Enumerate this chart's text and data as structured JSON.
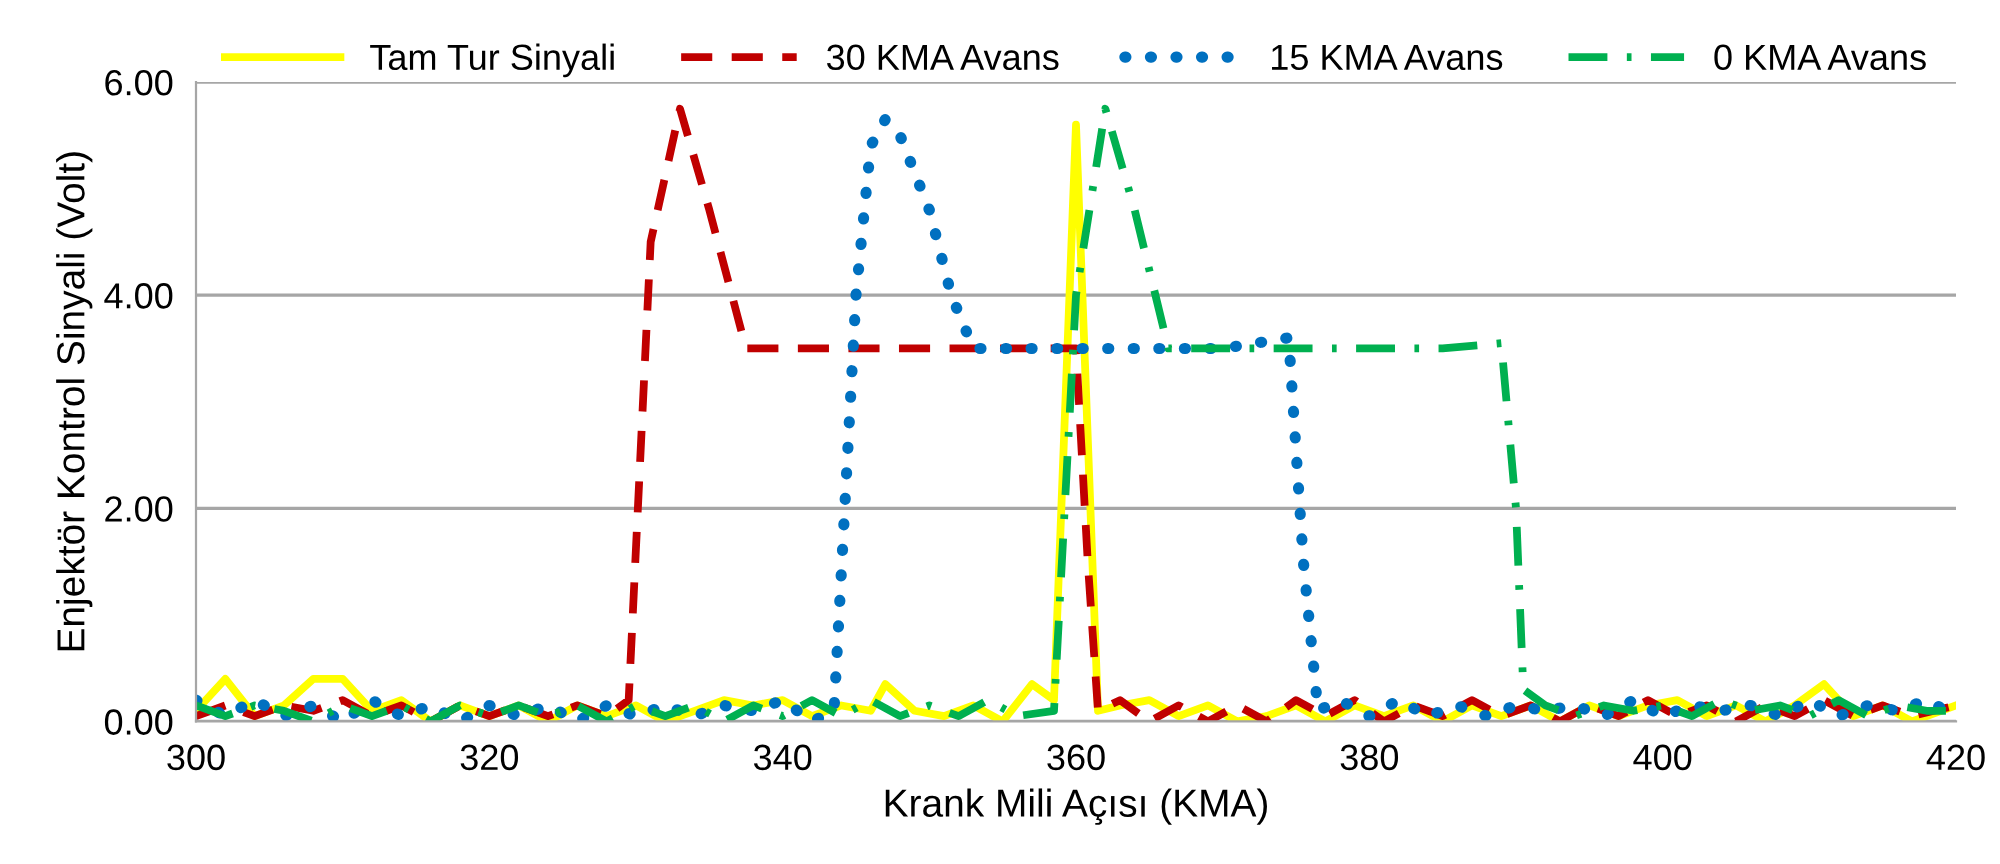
{
  "chart_data": {
    "type": "line",
    "xlabel": "Krank Mili Açısı (KMA)",
    "ylabel": "Enjektör Kontrol Sinyali (Volt)",
    "xlim": [
      300,
      420
    ],
    "xticks": [
      300,
      320,
      340,
      360,
      380,
      400,
      420
    ],
    "ylim": [
      0,
      6
    ],
    "yticks": [
      {
        "value": 0,
        "label": "0.00"
      },
      {
        "value": 2,
        "label": "2.00"
      },
      {
        "value": 4,
        "label": "4.00"
      },
      {
        "value": 6,
        "label": "6.00"
      }
    ],
    "grid": "y",
    "legend": "top",
    "marker": "none",
    "series": [
      {
        "name": "Tam Tur Sinyali",
        "color": "#ffff00",
        "line_style": "solid",
        "x": [
          300,
          302,
          304,
          306,
          308,
          310,
          312,
          314,
          316,
          318,
          320,
          322,
          324,
          326,
          328,
          330,
          332,
          334,
          336,
          338,
          340,
          342,
          344,
          346,
          347,
          349,
          351,
          353,
          355,
          357,
          358.5,
          360,
          361.5,
          363,
          365,
          367,
          369,
          371,
          373,
          375,
          377,
          379,
          381,
          383,
          385,
          387,
          389,
          391,
          393,
          395,
          397,
          399,
          401,
          403,
          405,
          407,
          409,
          411,
          413,
          415,
          417,
          420
        ],
        "values": [
          0.1,
          0.4,
          0.05,
          0.15,
          0.4,
          0.4,
          0.1,
          0.2,
          0.0,
          0.15,
          0.05,
          0.15,
          0.0,
          0.15,
          0.05,
          0.15,
          0.0,
          0.1,
          0.2,
          0.15,
          0.2,
          0.05,
          0.15,
          0.1,
          0.35,
          0.1,
          0.05,
          0.15,
          0.0,
          0.35,
          0.2,
          5.6,
          0.1,
          0.15,
          0.2,
          0.05,
          0.15,
          0.0,
          0.05,
          0.15,
          0.0,
          0.15,
          0.05,
          0.15,
          0.0,
          0.15,
          0.05,
          0.15,
          0.0,
          0.15,
          0.05,
          0.15,
          0.2,
          0.05,
          0.15,
          0.0,
          0.15,
          0.35,
          0.05,
          0.15,
          0.0,
          0.15
        ]
      },
      {
        "name": "30 KMA Avans",
        "color": "#c00000",
        "line_style": "dashed",
        "x": [
          300,
          302,
          304,
          306,
          308,
          310,
          312,
          314,
          316,
          318,
          320,
          322,
          324,
          326,
          328,
          329.5,
          331,
          333,
          335,
          337.5,
          340,
          345,
          350,
          355,
          360,
          360.8,
          361.5,
          363,
          365,
          367,
          369,
          371,
          373,
          375,
          377,
          379,
          381,
          383,
          385,
          387,
          389,
          391,
          393,
          395,
          397,
          399,
          401,
          403,
          405,
          407,
          409,
          411,
          413,
          415,
          417,
          420
        ],
        "values": [
          0.05,
          0.15,
          0.05,
          0.15,
          0.1,
          0.2,
          0.05,
          0.15,
          0.0,
          0.15,
          0.05,
          0.15,
          0.05,
          0.15,
          0.05,
          0.2,
          4.5,
          5.75,
          4.8,
          3.5,
          3.5,
          3.5,
          3.5,
          3.5,
          3.5,
          1.5,
          0.1,
          0.2,
          0.0,
          0.15,
          0.0,
          0.15,
          0.0,
          0.2,
          0.05,
          0.2,
          0.0,
          0.15,
          0.05,
          0.2,
          0.05,
          0.15,
          0.0,
          0.15,
          0.05,
          0.2,
          0.05,
          0.15,
          0.0,
          0.15,
          0.05,
          0.2,
          0.05,
          0.15,
          0.05,
          0.15
        ]
      },
      {
        "name": "15 KMA Avans",
        "color": "#0070c0",
        "line_style": "dotted",
        "x": [
          300,
          302,
          304,
          306,
          308,
          310,
          312,
          314,
          316,
          318,
          320,
          322,
          324,
          326,
          328,
          330,
          332,
          334,
          336,
          338,
          340,
          342,
          343.5,
          345,
          346,
          347,
          348,
          350,
          351.5,
          353,
          355,
          360,
          365,
          370,
          374.5,
          375.5,
          376.5,
          378,
          380,
          382,
          384,
          386,
          388,
          390,
          392,
          394,
          396,
          398,
          400,
          402,
          404,
          406,
          408,
          410,
          412,
          414,
          416,
          418,
          420
        ],
        "values": [
          0.2,
          0.05,
          0.2,
          0.05,
          0.15,
          0.0,
          0.2,
          0.05,
          0.15,
          0.0,
          0.15,
          0.05,
          0.15,
          0.0,
          0.15,
          0.05,
          0.15,
          0.05,
          0.15,
          0.1,
          0.2,
          0.0,
          0.1,
          4.0,
          5.4,
          5.65,
          5.5,
          4.8,
          4.0,
          3.5,
          3.5,
          3.5,
          3.5,
          3.5,
          3.6,
          1.5,
          0.1,
          0.2,
          0.05,
          0.2,
          0.05,
          0.15,
          0.05,
          0.15,
          0.1,
          0.15,
          0.05,
          0.2,
          0.05,
          0.15,
          0.1,
          0.15,
          0.05,
          0.2,
          0.05,
          0.15,
          0.1,
          0.2,
          0.05
        ]
      },
      {
        "name": "0 KMA Avans",
        "color": "#00b050",
        "line_style": "dashdot",
        "x": [
          300,
          302,
          304,
          306,
          308,
          310,
          312,
          314,
          316,
          318,
          320,
          322,
          324,
          326,
          328,
          330,
          332,
          334,
          336,
          338,
          340,
          342,
          344,
          346,
          348,
          350,
          352,
          354,
          356,
          358.5,
          360,
          362,
          364,
          366.3,
          370,
          375,
          380,
          385,
          389,
          390,
          390.5,
          392,
          394,
          396,
          398,
          400,
          402,
          404,
          406,
          408,
          410,
          412,
          414,
          416,
          418,
          420
        ],
        "values": [
          0.15,
          0.05,
          0.15,
          0.1,
          0.0,
          0.15,
          0.05,
          0.15,
          0.0,
          0.15,
          0.05,
          0.15,
          0.05,
          0.15,
          0.0,
          0.15,
          0.05,
          0.15,
          0.0,
          0.15,
          0.05,
          0.2,
          0.05,
          0.2,
          0.05,
          0.15,
          0.05,
          0.2,
          0.05,
          0.1,
          4.0,
          5.75,
          4.8,
          3.5,
          3.5,
          3.5,
          3.5,
          3.5,
          3.55,
          2.0,
          0.3,
          0.15,
          0.05,
          0.15,
          0.1,
          0.15,
          0.05,
          0.2,
          0.1,
          0.15,
          0.05,
          0.2,
          0.05,
          0.15,
          0.1,
          0.1
        ]
      }
    ]
  }
}
